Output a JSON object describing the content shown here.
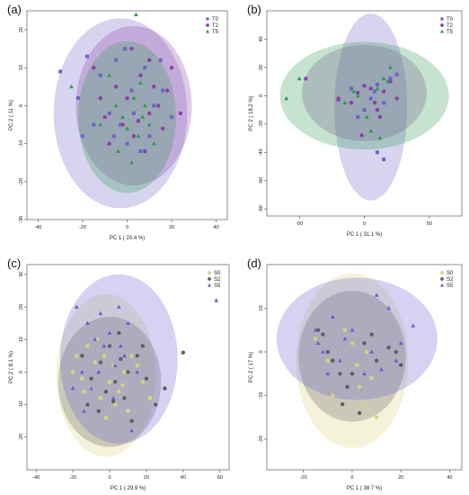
{
  "chart_data": [
    {
      "type": "scatter",
      "panel_label": "(a)",
      "xlabel": "PC 1 ( 20.4 %)",
      "ylabel": "PC 2 ( 11 %)",
      "xlim": [
        -45,
        45
      ],
      "ylim": [
        -30,
        25
      ],
      "xticks": [
        -40,
        -20,
        0,
        20,
        40
      ],
      "yticks": [
        -30,
        -20,
        -10,
        0,
        10,
        20
      ],
      "legend": "top-right",
      "series": [
        {
          "name": "T0",
          "color": "#6d64c7",
          "marker": "square",
          "ellipse": {
            "cx": -3,
            "cy": -2,
            "rx": 30,
            "ry": 25
          },
          "points": [
            [
              -30,
              9
            ],
            [
              -22,
              2
            ],
            [
              -20,
              -8
            ],
            [
              -15,
              -5
            ],
            [
              -12,
              8
            ],
            [
              -8,
              -2
            ],
            [
              -5,
              12
            ],
            [
              -3,
              -5
            ],
            [
              0,
              -10
            ],
            [
              2,
              4
            ],
            [
              5,
              -4
            ],
            [
              8,
              10
            ],
            [
              10,
              -8
            ],
            [
              12,
              0
            ],
            [
              15,
              12
            ],
            [
              20,
              -3
            ],
            [
              -6,
              -8
            ],
            [
              -1,
              15
            ],
            [
              6,
              -12
            ],
            [
              -18,
              13
            ],
            [
              3,
              -2
            ],
            [
              16,
              4
            ]
          ]
        },
        {
          "name": "T2",
          "color": "#8e3fa7",
          "marker": "circle",
          "ellipse": {
            "cx": 3,
            "cy": 0,
            "rx": 26,
            "ry": 21
          },
          "points": [
            [
              -15,
              10
            ],
            [
              -10,
              -3
            ],
            [
              -5,
              5
            ],
            [
              0,
              2
            ],
            [
              3,
              -8
            ],
            [
              6,
              8
            ],
            [
              10,
              -2
            ],
            [
              12,
              5
            ],
            [
              16,
              -6
            ],
            [
              20,
              10
            ],
            [
              24,
              -2
            ],
            [
              -8,
              -10
            ],
            [
              2,
              15
            ],
            [
              8,
              -12
            ],
            [
              14,
              0
            ],
            [
              -2,
              -5
            ],
            [
              18,
              4
            ],
            [
              5,
              -4
            ],
            [
              10,
              12
            ],
            [
              -12,
              2
            ]
          ]
        },
        {
          "name": "T5",
          "color": "#2f9a4e",
          "marker": "triangle",
          "ellipse": {
            "cx": 0,
            "cy": -3,
            "rx": 22,
            "ry": 20
          },
          "points": [
            [
              -25,
              5
            ],
            [
              -12,
              -5
            ],
            [
              -5,
              0
            ],
            [
              0,
              -6
            ],
            [
              3,
              2
            ],
            [
              5,
              -8
            ],
            [
              8,
              0
            ],
            [
              2,
              -15
            ],
            [
              10,
              -5
            ],
            [
              -8,
              8
            ],
            [
              4,
              24
            ],
            [
              -2,
              -3
            ],
            [
              6,
              6
            ],
            [
              12,
              -10
            ],
            [
              -4,
              -12
            ],
            [
              7,
              -3
            ]
          ]
        }
      ]
    },
    {
      "type": "scatter",
      "panel_label": "(b)",
      "xlabel": "PC 1 ( 31.1 %)",
      "ylabel": "PC 2 ( 18.2 %)",
      "xlim": [
        -75,
        75
      ],
      "ylim": [
        -85,
        60
      ],
      "xticks": [
        -50,
        0,
        50
      ],
      "yticks": [
        -80,
        -60,
        -40,
        -20,
        0,
        20,
        40
      ],
      "legend": "top-right",
      "series": [
        {
          "name": "T0",
          "color": "#6d64c7",
          "marker": "square",
          "ellipse": {
            "cx": 5,
            "cy": -8,
            "rx": 28,
            "ry": 66
          },
          "points": [
            [
              -20,
              -3
            ],
            [
              -10,
              5
            ],
            [
              0,
              -10
            ],
            [
              5,
              -2
            ],
            [
              10,
              8
            ],
            [
              15,
              -5
            ],
            [
              20,
              12
            ],
            [
              25,
              15
            ],
            [
              10,
              -40
            ],
            [
              15,
              -45
            ],
            [
              -5,
              -15
            ],
            [
              8,
              3
            ]
          ]
        },
        {
          "name": "T2",
          "color": "#8e3fa7",
          "marker": "circle",
          "ellipse": {
            "cx": 0,
            "cy": 2,
            "rx": 48,
            "ry": 34
          },
          "points": [
            [
              -45,
              12
            ],
            [
              -20,
              -2
            ],
            [
              -10,
              -5
            ],
            [
              -5,
              2
            ],
            [
              0,
              7
            ],
            [
              5,
              5
            ],
            [
              10,
              -10
            ],
            [
              15,
              3
            ],
            [
              20,
              10
            ],
            [
              25,
              -2
            ],
            [
              -2,
              -28
            ],
            [
              12,
              -15
            ],
            [
              8,
              -5
            ]
          ]
        },
        {
          "name": "T5",
          "color": "#2f9a4e",
          "marker": "triangle",
          "ellipse": {
            "cx": 0,
            "cy": 0,
            "rx": 65,
            "ry": 38
          },
          "points": [
            [
              -60,
              -2
            ],
            [
              -50,
              12
            ],
            [
              -15,
              -5
            ],
            [
              -5,
              0
            ],
            [
              2,
              -15
            ],
            [
              5,
              -25
            ],
            [
              10,
              5
            ],
            [
              15,
              12
            ],
            [
              20,
              20
            ],
            [
              12,
              -30
            ],
            [
              -8,
              3
            ],
            [
              18,
              10
            ]
          ]
        }
      ]
    },
    {
      "type": "scatter",
      "panel_label": "(c)",
      "xlabel": "PC 1 ( 29.9 %)",
      "ylabel": "PC 2 ( 8.1 %)",
      "xlim": [
        -45,
        65
      ],
      "ylim": [
        -30,
        33
      ],
      "xticks": [
        -40,
        -20,
        0,
        20,
        40,
        60
      ],
      "yticks": [
        -20,
        -10,
        0,
        10,
        20,
        30
      ],
      "legend": "top-right",
      "series": [
        {
          "name": "S0",
          "color": "#d8d47a",
          "marker": "circle",
          "ellipse": {
            "cx": -2,
            "cy": -1,
            "rx": 27,
            "ry": 25
          },
          "points": [
            [
              -20,
              0
            ],
            [
              -18,
              5
            ],
            [
              -15,
              -2
            ],
            [
              -12,
              8
            ],
            [
              -10,
              -5
            ],
            [
              -8,
              3
            ],
            [
              -5,
              -8
            ],
            [
              -3,
              5
            ],
            [
              0,
              -3
            ],
            [
              2,
              2
            ],
            [
              5,
              -6
            ],
            [
              8,
              0
            ],
            [
              10,
              -12
            ],
            [
              -14,
              -6
            ],
            [
              3,
              -10
            ],
            [
              -7,
              10
            ],
            [
              12,
              5
            ],
            [
              15,
              2
            ],
            [
              -2,
              -14
            ],
            [
              7,
              -4
            ],
            [
              18,
              -3
            ],
            [
              22,
              -8
            ]
          ]
        },
        {
          "name": "S2",
          "color": "#5f5f5f",
          "marker": "circle",
          "ellipse": {
            "cx": 0,
            "cy": -3,
            "rx": 28,
            "ry": 20
          },
          "points": [
            [
              -15,
              5
            ],
            [
              -10,
              -2
            ],
            [
              -5,
              3
            ],
            [
              -2,
              -6
            ],
            [
              0,
              8
            ],
            [
              3,
              -3
            ],
            [
              5,
              12
            ],
            [
              8,
              -8
            ],
            [
              10,
              0
            ],
            [
              12,
              -15
            ],
            [
              15,
              5
            ],
            [
              20,
              -2
            ],
            [
              25,
              -10
            ],
            [
              30,
              -5
            ],
            [
              40,
              6
            ],
            [
              -12,
              -10
            ],
            [
              -6,
              -12
            ],
            [
              18,
              8
            ],
            [
              2,
              -9
            ],
            [
              6,
              4
            ]
          ]
        },
        {
          "name": "S5",
          "color": "#6b5fcf",
          "marker": "triangle",
          "ellipse": {
            "cx": 5,
            "cy": 4,
            "rx": 32,
            "ry": 26
          },
          "points": [
            [
              -18,
              20
            ],
            [
              -12,
              15
            ],
            [
              -8,
              10
            ],
            [
              -5,
              18
            ],
            [
              0,
              12
            ],
            [
              5,
              20
            ],
            [
              -15,
              0
            ],
            [
              -10,
              -5
            ],
            [
              -3,
              8
            ],
            [
              2,
              -8
            ],
            [
              8,
              5
            ],
            [
              10,
              15
            ],
            [
              -20,
              -5
            ],
            [
              15,
              0
            ],
            [
              58,
              22
            ],
            [
              -6,
              0
            ],
            [
              3,
              2
            ],
            [
              -14,
              -12
            ],
            [
              12,
              -18
            ],
            [
              6,
              8
            ]
          ]
        }
      ]
    },
    {
      "type": "scatter",
      "panel_label": "(d)",
      "xlabel": "PC 1 ( 38.7 %)",
      "ylabel": "PC 2 ( 17 %)",
      "xlim": [
        -35,
        45
      ],
      "ylim": [
        -27,
        20
      ],
      "xticks": [
        -20,
        0,
        20,
        40
      ],
      "yticks": [
        -20,
        -10,
        0,
        10
      ],
      "legend": "top-right",
      "series": [
        {
          "name": "S0",
          "color": "#d8d47a",
          "marker": "circle",
          "ellipse": {
            "cx": 0,
            "cy": -2,
            "rx": 23,
            "ry": 20
          },
          "points": [
            [
              -15,
              3
            ],
            [
              -10,
              -2
            ],
            [
              -5,
              -5
            ],
            [
              0,
              2
            ],
            [
              3,
              -8
            ],
            [
              5,
              -12
            ],
            [
              8,
              -6
            ],
            [
              10,
              -15
            ],
            [
              -8,
              -10
            ],
            [
              2,
              -3
            ],
            [
              6,
              0
            ],
            [
              -3,
              5
            ]
          ]
        },
        {
          "name": "S2",
          "color": "#5f5f5f",
          "marker": "circle",
          "ellipse": {
            "cx": 0,
            "cy": -1,
            "rx": 22,
            "ry": 15
          },
          "points": [
            [
              -14,
              5
            ],
            [
              -12,
              4
            ],
            [
              -10,
              0
            ],
            [
              -8,
              -2
            ],
            [
              -5,
              -5
            ],
            [
              -2,
              -8
            ],
            [
              0,
              -5
            ],
            [
              5,
              2
            ],
            [
              10,
              -2
            ],
            [
              15,
              1
            ],
            [
              20,
              -3
            ],
            [
              3,
              -14
            ],
            [
              -4,
              -12
            ],
            [
              8,
              4
            ],
            [
              18,
              0
            ]
          ]
        },
        {
          "name": "S5",
          "color": "#6b5fcf",
          "marker": "triangle",
          "ellipse": {
            "cx": 2,
            "cy": 3,
            "rx": 33,
            "ry": 14
          },
          "points": [
            [
              -15,
              5
            ],
            [
              -12,
              0
            ],
            [
              -10,
              -5
            ],
            [
              -8,
              8
            ],
            [
              -5,
              -2
            ],
            [
              0,
              5
            ],
            [
              5,
              -5
            ],
            [
              10,
              13
            ],
            [
              15,
              10
            ],
            [
              20,
              2
            ],
            [
              25,
              6
            ],
            [
              -14,
              2
            ],
            [
              8,
              0
            ],
            [
              18,
              -2
            ],
            [
              -3,
              3
            ],
            [
              12,
              -4
            ]
          ]
        }
      ]
    }
  ]
}
